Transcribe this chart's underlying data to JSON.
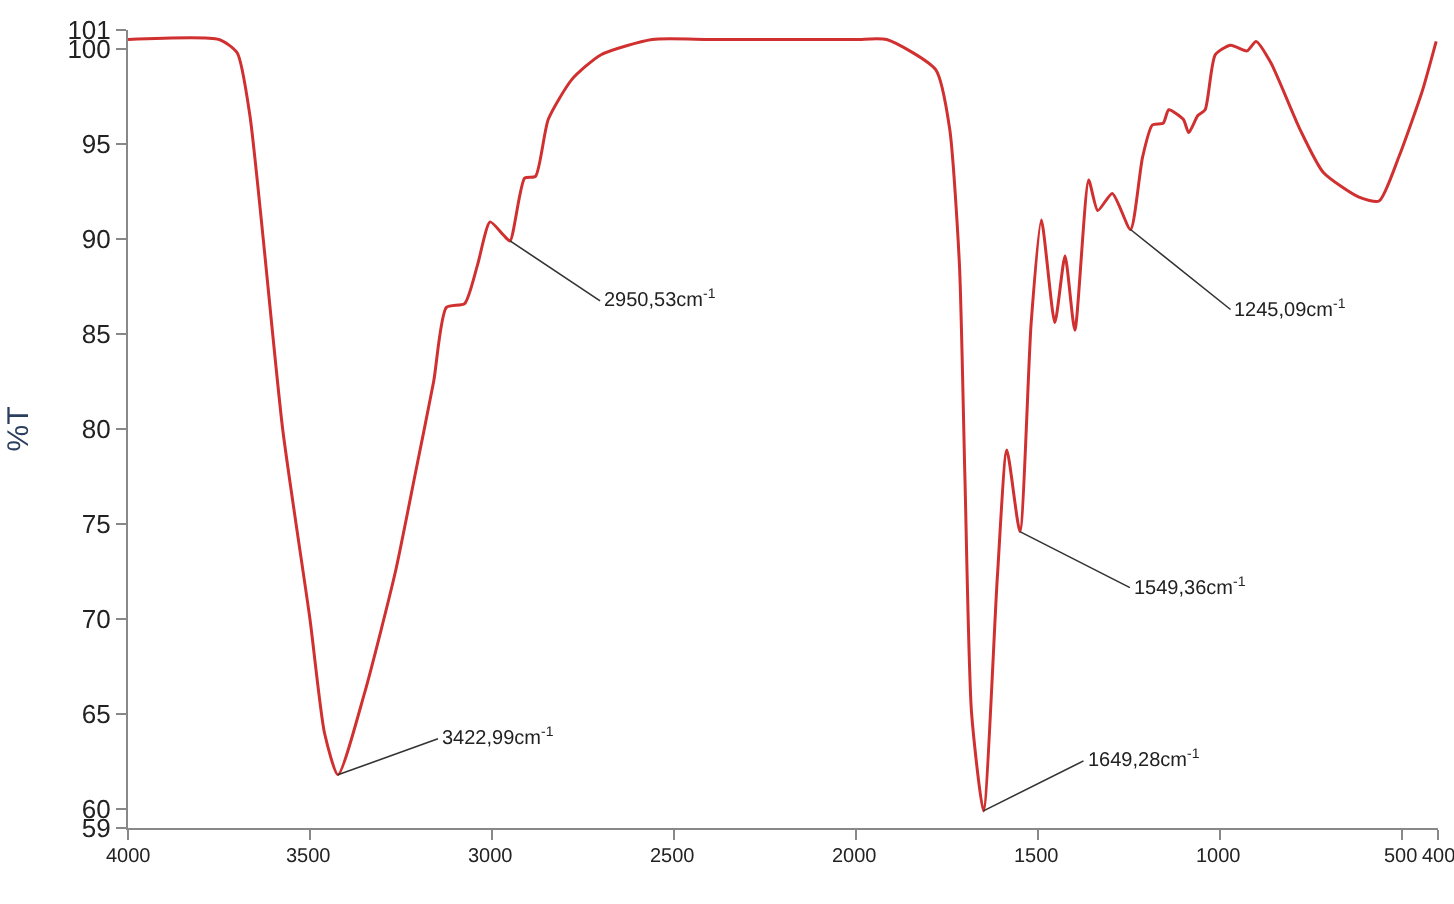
{
  "chart_data": {
    "type": "line",
    "ylabel": "%T",
    "xlim": [
      4000,
      400
    ],
    "ylim": [
      59,
      101
    ],
    "xticks": [
      4000,
      3500,
      3000,
      2500,
      2000,
      1500,
      1000,
      500,
      400
    ],
    "yticks": [
      59,
      60,
      65,
      70,
      75,
      80,
      85,
      90,
      95,
      100,
      101
    ],
    "marker": "none",
    "line_style": "solid",
    "series": [
      {
        "color": "#d03030",
        "x": [
          4000,
          3750,
          3700,
          3665,
          3575,
          3500,
          3460,
          3423,
          3350,
          3265,
          3210,
          3160,
          3125,
          3075,
          3040,
          3005,
          2968,
          2950,
          2910,
          2880,
          2845,
          2780,
          2700,
          2560,
          2400,
          2200,
          2000,
          1915,
          1780,
          1742,
          1715,
          1700,
          1682,
          1649,
          1611,
          1585,
          1549,
          1518,
          1490,
          1453,
          1425,
          1398,
          1360,
          1335,
          1295,
          1245,
          1212,
          1185,
          1155,
          1140,
          1100,
          1085,
          1060,
          1040,
          1012,
          970,
          925,
          900,
          860,
          780,
          715,
          617,
          562,
          508,
          443,
          405
        ],
        "values": [
          100.5,
          100.5,
          99.8,
          96.5,
          80,
          70,
          64,
          61.8,
          66.1,
          72.5,
          77.7,
          82.5,
          86.4,
          86.6,
          88.6,
          90.9,
          90.2,
          89.9,
          93.2,
          93.3,
          96.3,
          98.4,
          99.7,
          100.5,
          100.5,
          100.5,
          100.5,
          100.5,
          98.9,
          95.8,
          88.6,
          77.4,
          65.1,
          59.9,
          72.2,
          78.9,
          74.6,
          85.6,
          91.0,
          85.6,
          89.1,
          85.2,
          93.1,
          91.5,
          92.4,
          90.5,
          94.3,
          96.0,
          96.1,
          96.8,
          96.3,
          95.6,
          96.5,
          96.8,
          99.7,
          100.2,
          99.9,
          100.4,
          99.3,
          95.8,
          93.5,
          92.2,
          92.0,
          94.3,
          97.8,
          100.4
        ]
      }
    ],
    "annotations": [
      {
        "text": "3422,99cm$^{-1}$",
        "x": 3423,
        "y": 61.8
      },
      {
        "text": "2950,53cm$^{-1}$",
        "x": 2950,
        "y": 89.9
      },
      {
        "text": "1649,28cm$^{-1}$",
        "x": 1649,
        "y": 59.9
      },
      {
        "text": "1549,36cm$^{-1}$",
        "x": 1549,
        "y": 74.6
      },
      {
        "text": "1245,09cm$^{-1}$",
        "x": 1245,
        "y": 90.5
      }
    ]
  }
}
